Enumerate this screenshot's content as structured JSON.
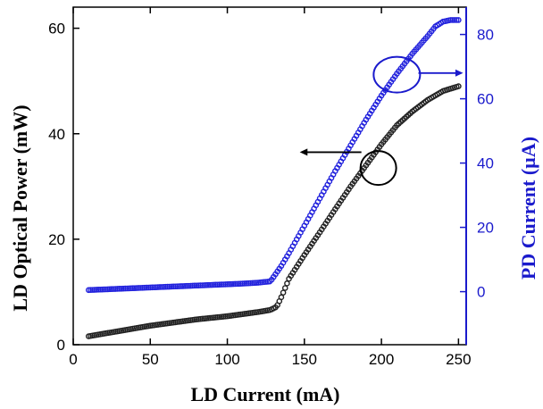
{
  "chart_data": {
    "type": "scatter",
    "title": "",
    "xlabel": "LD Current (mA)",
    "ylabel_left": "LD Optical Power (mW)",
    "ylabel_right": "PD Current (µA)",
    "xlim": [
      0,
      255
    ],
    "ylim_left": [
      0,
      64
    ],
    "ylim_right": [
      -16.5,
      88.5
    ],
    "x_ticks": [
      0,
      50,
      100,
      150,
      200,
      250
    ],
    "y_left_ticks": [
      0,
      20,
      40,
      60
    ],
    "y_right_ticks": [
      0,
      20,
      40,
      60,
      80
    ],
    "colors": {
      "left_axis": "#000000",
      "right_axis": "#1a1acc",
      "optical_series": "#222222",
      "pd_series": "#2222dd"
    },
    "series": [
      {
        "axis": "left",
        "x": [
          10,
          20,
          30,
          40,
          50,
          60,
          70,
          80,
          90,
          100,
          110,
          120,
          128,
          132,
          135,
          140,
          150,
          160,
          170,
          180,
          190,
          200,
          210,
          220,
          230,
          240,
          250
        ],
        "values": [
          1.6,
          2.1,
          2.6,
          3.1,
          3.6,
          4.0,
          4.4,
          4.8,
          5.1,
          5.4,
          5.8,
          6.2,
          6.6,
          7.2,
          9.0,
          12.5,
          17.0,
          21.3,
          25.7,
          30.0,
          34.0,
          38.0,
          41.6,
          44.2,
          46.4,
          48.1,
          49.0
        ]
      },
      {
        "axis": "right",
        "x": [
          10,
          20,
          30,
          40,
          50,
          60,
          70,
          80,
          90,
          100,
          110,
          120,
          128,
          135,
          140,
          150,
          160,
          170,
          180,
          190,
          200,
          210,
          220,
          230,
          235,
          240,
          245,
          250
        ],
        "values": [
          0.5,
          0.7,
          0.9,
          1.1,
          1.3,
          1.5,
          1.7,
          1.9,
          2.1,
          2.3,
          2.5,
          2.8,
          3.2,
          8.0,
          12.0,
          20.5,
          29.0,
          37.5,
          45.5,
          53.5,
          61.0,
          67.8,
          74.0,
          79.5,
          82.5,
          84.0,
          84.5,
          84.5
        ]
      }
    ]
  }
}
